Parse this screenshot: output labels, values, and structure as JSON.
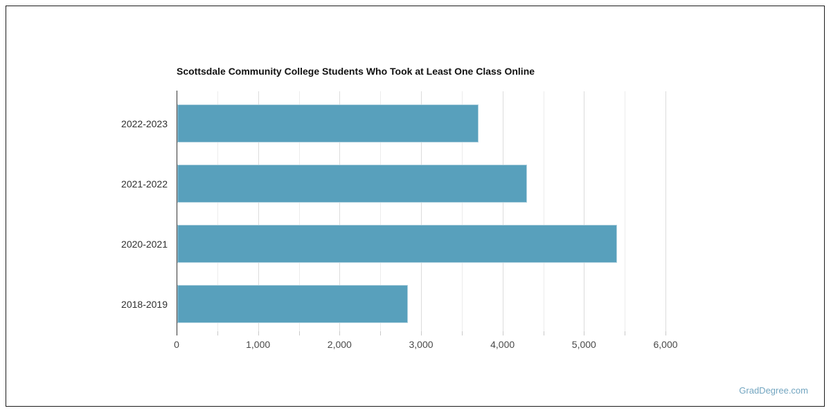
{
  "chart_data": {
    "type": "bar",
    "orientation": "horizontal",
    "title": "Scottsdale Community College Students Who Took at Least One Class Online",
    "categories": [
      "2022-2023",
      "2021-2022",
      "2020-2021",
      "2018-2019"
    ],
    "values": [
      3700,
      4290,
      5400,
      2830
    ],
    "xlabel": "",
    "ylabel": "",
    "xlim": [
      0,
      6000
    ],
    "gridline_interval": 500,
    "grid": "vertical",
    "legend": "none",
    "x_ticks": [
      {
        "value": 0,
        "label": "0"
      },
      {
        "value": 1000,
        "label": "1,000"
      },
      {
        "value": 2000,
        "label": "2,000"
      },
      {
        "value": 3000,
        "label": "3,000"
      },
      {
        "value": 4000,
        "label": "4,000"
      },
      {
        "value": 5000,
        "label": "5,000"
      },
      {
        "value": 6000,
        "label": "6,000"
      }
    ]
  },
  "colors": {
    "bar": "#58a0bc",
    "bar_border": "#aed0de",
    "axis": "#333333",
    "grid_major": "#dcdcdc",
    "grid_minor": "#ececec",
    "title": "#111111",
    "category_label": "#2f2f2f",
    "tick_label": "#4a4a4a",
    "frame_border": "#1b1b1b",
    "watermark": "#72a5c0"
  },
  "watermark": {
    "text": "GradDegree.com"
  }
}
